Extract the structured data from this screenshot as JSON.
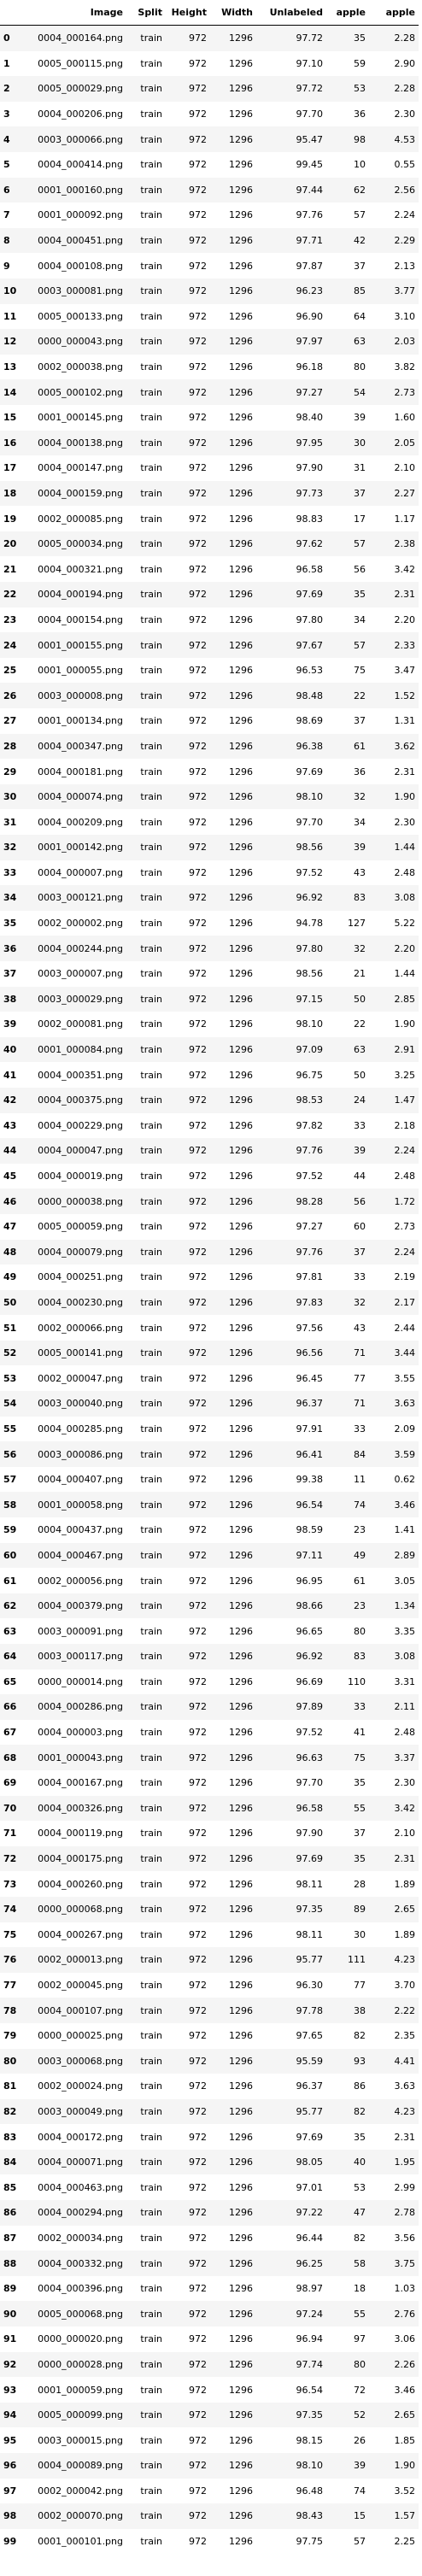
{
  "columns": [
    "",
    "Image",
    "Split",
    "Height",
    "Width",
    "Unlabeled",
    "apple",
    "apple"
  ],
  "rows": [
    [
      "0",
      "0004_000164.png",
      "train",
      "972",
      "1296",
      "97.72",
      "35",
      "2.28"
    ],
    [
      "1",
      "0005_000115.png",
      "train",
      "972",
      "1296",
      "97.10",
      "59",
      "2.90"
    ],
    [
      "2",
      "0005_000029.png",
      "train",
      "972",
      "1296",
      "97.72",
      "53",
      "2.28"
    ],
    [
      "3",
      "0004_000206.png",
      "train",
      "972",
      "1296",
      "97.70",
      "36",
      "2.30"
    ],
    [
      "4",
      "0003_000066.png",
      "train",
      "972",
      "1296",
      "95.47",
      "98",
      "4.53"
    ],
    [
      "5",
      "0004_000414.png",
      "train",
      "972",
      "1296",
      "99.45",
      "10",
      "0.55"
    ],
    [
      "6",
      "0001_000160.png",
      "train",
      "972",
      "1296",
      "97.44",
      "62",
      "2.56"
    ],
    [
      "7",
      "0001_000092.png",
      "train",
      "972",
      "1296",
      "97.76",
      "57",
      "2.24"
    ],
    [
      "8",
      "0004_000451.png",
      "train",
      "972",
      "1296",
      "97.71",
      "42",
      "2.29"
    ],
    [
      "9",
      "0004_000108.png",
      "train",
      "972",
      "1296",
      "97.87",
      "37",
      "2.13"
    ],
    [
      "10",
      "0003_000081.png",
      "train",
      "972",
      "1296",
      "96.23",
      "85",
      "3.77"
    ],
    [
      "11",
      "0005_000133.png",
      "train",
      "972",
      "1296",
      "96.90",
      "64",
      "3.10"
    ],
    [
      "12",
      "0000_000043.png",
      "train",
      "972",
      "1296",
      "97.97",
      "63",
      "2.03"
    ],
    [
      "13",
      "0002_000038.png",
      "train",
      "972",
      "1296",
      "96.18",
      "80",
      "3.82"
    ],
    [
      "14",
      "0005_000102.png",
      "train",
      "972",
      "1296",
      "97.27",
      "54",
      "2.73"
    ],
    [
      "15",
      "0001_000145.png",
      "train",
      "972",
      "1296",
      "98.40",
      "39",
      "1.60"
    ],
    [
      "16",
      "0004_000138.png",
      "train",
      "972",
      "1296",
      "97.95",
      "30",
      "2.05"
    ],
    [
      "17",
      "0004_000147.png",
      "train",
      "972",
      "1296",
      "97.90",
      "31",
      "2.10"
    ],
    [
      "18",
      "0004_000159.png",
      "train",
      "972",
      "1296",
      "97.73",
      "37",
      "2.27"
    ],
    [
      "19",
      "0002_000085.png",
      "train",
      "972",
      "1296",
      "98.83",
      "17",
      "1.17"
    ],
    [
      "20",
      "0005_000034.png",
      "train",
      "972",
      "1296",
      "97.62",
      "57",
      "2.38"
    ],
    [
      "21",
      "0004_000321.png",
      "train",
      "972",
      "1296",
      "96.58",
      "56",
      "3.42"
    ],
    [
      "22",
      "0004_000194.png",
      "train",
      "972",
      "1296",
      "97.69",
      "35",
      "2.31"
    ],
    [
      "23",
      "0004_000154.png",
      "train",
      "972",
      "1296",
      "97.80",
      "34",
      "2.20"
    ],
    [
      "24",
      "0001_000155.png",
      "train",
      "972",
      "1296",
      "97.67",
      "57",
      "2.33"
    ],
    [
      "25",
      "0001_000055.png",
      "train",
      "972",
      "1296",
      "96.53",
      "75",
      "3.47"
    ],
    [
      "26",
      "0003_000008.png",
      "train",
      "972",
      "1296",
      "98.48",
      "22",
      "1.52"
    ],
    [
      "27",
      "0001_000134.png",
      "train",
      "972",
      "1296",
      "98.69",
      "37",
      "1.31"
    ],
    [
      "28",
      "0004_000347.png",
      "train",
      "972",
      "1296",
      "96.38",
      "61",
      "3.62"
    ],
    [
      "29",
      "0004_000181.png",
      "train",
      "972",
      "1296",
      "97.69",
      "36",
      "2.31"
    ],
    [
      "30",
      "0004_000074.png",
      "train",
      "972",
      "1296",
      "98.10",
      "32",
      "1.90"
    ],
    [
      "31",
      "0004_000209.png",
      "train",
      "972",
      "1296",
      "97.70",
      "34",
      "2.30"
    ],
    [
      "32",
      "0001_000142.png",
      "train",
      "972",
      "1296",
      "98.56",
      "39",
      "1.44"
    ],
    [
      "33",
      "0004_000007.png",
      "train",
      "972",
      "1296",
      "97.52",
      "43",
      "2.48"
    ],
    [
      "34",
      "0003_000121.png",
      "train",
      "972",
      "1296",
      "96.92",
      "83",
      "3.08"
    ],
    [
      "35",
      "0002_000002.png",
      "train",
      "972",
      "1296",
      "94.78",
      "127",
      "5.22"
    ],
    [
      "36",
      "0004_000244.png",
      "train",
      "972",
      "1296",
      "97.80",
      "32",
      "2.20"
    ],
    [
      "37",
      "0003_000007.png",
      "train",
      "972",
      "1296",
      "98.56",
      "21",
      "1.44"
    ],
    [
      "38",
      "0003_000029.png",
      "train",
      "972",
      "1296",
      "97.15",
      "50",
      "2.85"
    ],
    [
      "39",
      "0002_000081.png",
      "train",
      "972",
      "1296",
      "98.10",
      "22",
      "1.90"
    ],
    [
      "40",
      "0001_000084.png",
      "train",
      "972",
      "1296",
      "97.09",
      "63",
      "2.91"
    ],
    [
      "41",
      "0004_000351.png",
      "train",
      "972",
      "1296",
      "96.75",
      "50",
      "3.25"
    ],
    [
      "42",
      "0004_000375.png",
      "train",
      "972",
      "1296",
      "98.53",
      "24",
      "1.47"
    ],
    [
      "43",
      "0004_000229.png",
      "train",
      "972",
      "1296",
      "97.82",
      "33",
      "2.18"
    ],
    [
      "44",
      "0004_000047.png",
      "train",
      "972",
      "1296",
      "97.76",
      "39",
      "2.24"
    ],
    [
      "45",
      "0004_000019.png",
      "train",
      "972",
      "1296",
      "97.52",
      "44",
      "2.48"
    ],
    [
      "46",
      "0000_000038.png",
      "train",
      "972",
      "1296",
      "98.28",
      "56",
      "1.72"
    ],
    [
      "47",
      "0005_000059.png",
      "train",
      "972",
      "1296",
      "97.27",
      "60",
      "2.73"
    ],
    [
      "48",
      "0004_000079.png",
      "train",
      "972",
      "1296",
      "97.76",
      "37",
      "2.24"
    ],
    [
      "49",
      "0004_000251.png",
      "train",
      "972",
      "1296",
      "97.81",
      "33",
      "2.19"
    ],
    [
      "50",
      "0004_000230.png",
      "train",
      "972",
      "1296",
      "97.83",
      "32",
      "2.17"
    ],
    [
      "51",
      "0002_000066.png",
      "train",
      "972",
      "1296",
      "97.56",
      "43",
      "2.44"
    ],
    [
      "52",
      "0005_000141.png",
      "train",
      "972",
      "1296",
      "96.56",
      "71",
      "3.44"
    ],
    [
      "53",
      "0002_000047.png",
      "train",
      "972",
      "1296",
      "96.45",
      "77",
      "3.55"
    ],
    [
      "54",
      "0003_000040.png",
      "train",
      "972",
      "1296",
      "96.37",
      "71",
      "3.63"
    ],
    [
      "55",
      "0004_000285.png",
      "train",
      "972",
      "1296",
      "97.91",
      "33",
      "2.09"
    ],
    [
      "56",
      "0003_000086.png",
      "train",
      "972",
      "1296",
      "96.41",
      "84",
      "3.59"
    ],
    [
      "57",
      "0004_000407.png",
      "train",
      "972",
      "1296",
      "99.38",
      "11",
      "0.62"
    ],
    [
      "58",
      "0001_000058.png",
      "train",
      "972",
      "1296",
      "96.54",
      "74",
      "3.46"
    ],
    [
      "59",
      "0004_000437.png",
      "train",
      "972",
      "1296",
      "98.59",
      "23",
      "1.41"
    ],
    [
      "60",
      "0004_000467.png",
      "train",
      "972",
      "1296",
      "97.11",
      "49",
      "2.89"
    ],
    [
      "61",
      "0002_000056.png",
      "train",
      "972",
      "1296",
      "96.95",
      "61",
      "3.05"
    ],
    [
      "62",
      "0004_000379.png",
      "train",
      "972",
      "1296",
      "98.66",
      "23",
      "1.34"
    ],
    [
      "63",
      "0003_000091.png",
      "train",
      "972",
      "1296",
      "96.65",
      "80",
      "3.35"
    ],
    [
      "64",
      "0003_000117.png",
      "train",
      "972",
      "1296",
      "96.92",
      "83",
      "3.08"
    ],
    [
      "65",
      "0000_000014.png",
      "train",
      "972",
      "1296",
      "96.69",
      "110",
      "3.31"
    ],
    [
      "66",
      "0004_000286.png",
      "train",
      "972",
      "1296",
      "97.89",
      "33",
      "2.11"
    ],
    [
      "67",
      "0004_000003.png",
      "train",
      "972",
      "1296",
      "97.52",
      "41",
      "2.48"
    ],
    [
      "68",
      "0001_000043.png",
      "train",
      "972",
      "1296",
      "96.63",
      "75",
      "3.37"
    ],
    [
      "69",
      "0004_000167.png",
      "train",
      "972",
      "1296",
      "97.70",
      "35",
      "2.30"
    ],
    [
      "70",
      "0004_000326.png",
      "train",
      "972",
      "1296",
      "96.58",
      "55",
      "3.42"
    ],
    [
      "71",
      "0004_000119.png",
      "train",
      "972",
      "1296",
      "97.90",
      "37",
      "2.10"
    ],
    [
      "72",
      "0004_000175.png",
      "train",
      "972",
      "1296",
      "97.69",
      "35",
      "2.31"
    ],
    [
      "73",
      "0004_000260.png",
      "train",
      "972",
      "1296",
      "98.11",
      "28",
      "1.89"
    ],
    [
      "74",
      "0000_000068.png",
      "train",
      "972",
      "1296",
      "97.35",
      "89",
      "2.65"
    ],
    [
      "75",
      "0004_000267.png",
      "train",
      "972",
      "1296",
      "98.11",
      "30",
      "1.89"
    ],
    [
      "76",
      "0002_000013.png",
      "train",
      "972",
      "1296",
      "95.77",
      "111",
      "4.23"
    ],
    [
      "77",
      "0002_000045.png",
      "train",
      "972",
      "1296",
      "96.30",
      "77",
      "3.70"
    ],
    [
      "78",
      "0004_000107.png",
      "train",
      "972",
      "1296",
      "97.78",
      "38",
      "2.22"
    ],
    [
      "79",
      "0000_000025.png",
      "train",
      "972",
      "1296",
      "97.65",
      "82",
      "2.35"
    ],
    [
      "80",
      "0003_000068.png",
      "train",
      "972",
      "1296",
      "95.59",
      "93",
      "4.41"
    ],
    [
      "81",
      "0002_000024.png",
      "train",
      "972",
      "1296",
      "96.37",
      "86",
      "3.63"
    ],
    [
      "82",
      "0003_000049.png",
      "train",
      "972",
      "1296",
      "95.77",
      "82",
      "4.23"
    ],
    [
      "83",
      "0004_000172.png",
      "train",
      "972",
      "1296",
      "97.69",
      "35",
      "2.31"
    ],
    [
      "84",
      "0004_000071.png",
      "train",
      "972",
      "1296",
      "98.05",
      "40",
      "1.95"
    ],
    [
      "85",
      "0004_000463.png",
      "train",
      "972",
      "1296",
      "97.01",
      "53",
      "2.99"
    ],
    [
      "86",
      "0004_000294.png",
      "train",
      "972",
      "1296",
      "97.22",
      "47",
      "2.78"
    ],
    [
      "87",
      "0002_000034.png",
      "train",
      "972",
      "1296",
      "96.44",
      "82",
      "3.56"
    ],
    [
      "88",
      "0004_000332.png",
      "train",
      "972",
      "1296",
      "96.25",
      "58",
      "3.75"
    ],
    [
      "89",
      "0004_000396.png",
      "train",
      "972",
      "1296",
      "98.97",
      "18",
      "1.03"
    ],
    [
      "90",
      "0005_000068.png",
      "train",
      "972",
      "1296",
      "97.24",
      "55",
      "2.76"
    ],
    [
      "91",
      "0000_000020.png",
      "train",
      "972",
      "1296",
      "96.94",
      "97",
      "3.06"
    ],
    [
      "92",
      "0000_000028.png",
      "train",
      "972",
      "1296",
      "97.74",
      "80",
      "2.26"
    ],
    [
      "93",
      "0001_000059.png",
      "train",
      "972",
      "1296",
      "96.54",
      "72",
      "3.46"
    ],
    [
      "94",
      "0005_000099.png",
      "train",
      "972",
      "1296",
      "97.35",
      "52",
      "2.65"
    ],
    [
      "95",
      "0003_000015.png",
      "train",
      "972",
      "1296",
      "98.15",
      "26",
      "1.85"
    ],
    [
      "96",
      "0004_000089.png",
      "train",
      "972",
      "1296",
      "98.10",
      "39",
      "1.90"
    ],
    [
      "97",
      "0002_000042.png",
      "train",
      "972",
      "1296",
      "96.48",
      "74",
      "3.52"
    ],
    [
      "98",
      "0002_000070.png",
      "train",
      "972",
      "1296",
      "98.43",
      "15",
      "1.57"
    ],
    [
      "99",
      "0001_000101.png",
      "train",
      "972",
      "1296",
      "97.75",
      "57",
      "2.25"
    ]
  ]
}
